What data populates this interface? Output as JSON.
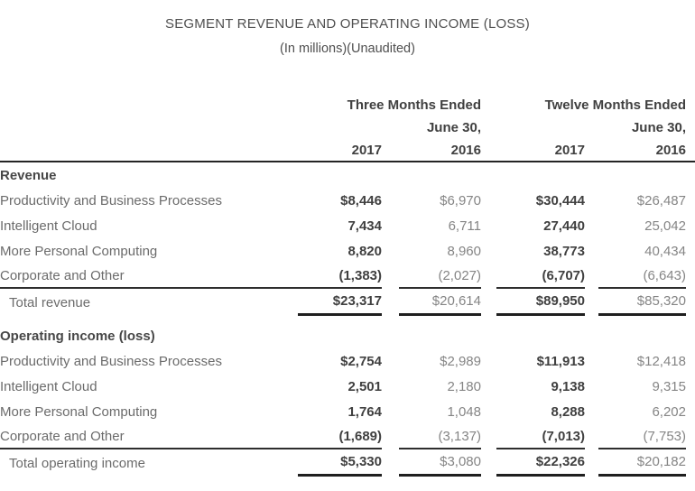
{
  "title": "SEGMENT REVENUE AND OPERATING INCOME (LOSS)",
  "subtitle": "(In millions)(Unaudited)",
  "header": {
    "group1_line1": "Three Months Ended",
    "group1_line2": "June 30,",
    "group2_line1": "Twelve Months Ended",
    "group2_line2": "June 30,",
    "years": [
      "2017",
      "2016",
      "2017",
      "2016"
    ]
  },
  "sections": [
    {
      "heading": "Revenue",
      "rows": [
        {
          "label": "Productivity and Business Processes",
          "values": [
            "$8,446",
            "$6,970",
            "$30,444",
            "$26,487"
          ]
        },
        {
          "label": "Intelligent Cloud",
          "values": [
            "7,434",
            "6,711",
            "27,440",
            "25,042"
          ]
        },
        {
          "label": "More Personal Computing",
          "values": [
            "8,820",
            "8,960",
            "38,773",
            "40,434"
          ]
        },
        {
          "label": "Corporate and Other",
          "values": [
            "(1,383)",
            "(2,027)",
            "(6,707)",
            "(6,643)"
          ]
        }
      ],
      "total": {
        "label": "Total revenue",
        "values": [
          "$23,317",
          "$20,614",
          "$89,950",
          "$85,320"
        ]
      }
    },
    {
      "heading": "Operating income (loss)",
      "rows": [
        {
          "label": "Productivity and Business Processes",
          "values": [
            "$2,754",
            "$2,989",
            "$11,913",
            "$12,418"
          ]
        },
        {
          "label": "Intelligent Cloud",
          "values": [
            "2,501",
            "2,180",
            "9,138",
            "9,315"
          ]
        },
        {
          "label": "More Personal Computing",
          "values": [
            "1,764",
            "1,048",
            "8,288",
            "6,202"
          ]
        },
        {
          "label": "Corporate and Other",
          "values": [
            "(1,689)",
            "(3,137)",
            "(7,013)",
            "(7,753)"
          ]
        }
      ],
      "total": {
        "label": "Total operating income",
        "values": [
          "$5,330",
          "$3,080",
          "$22,326",
          "$20,182"
        ]
      }
    }
  ],
  "colors": {
    "text_bold": "#404040",
    "text_label": "#6b6b6b",
    "text_muted": "#858585",
    "rule_dark": "#1f1f1f"
  }
}
